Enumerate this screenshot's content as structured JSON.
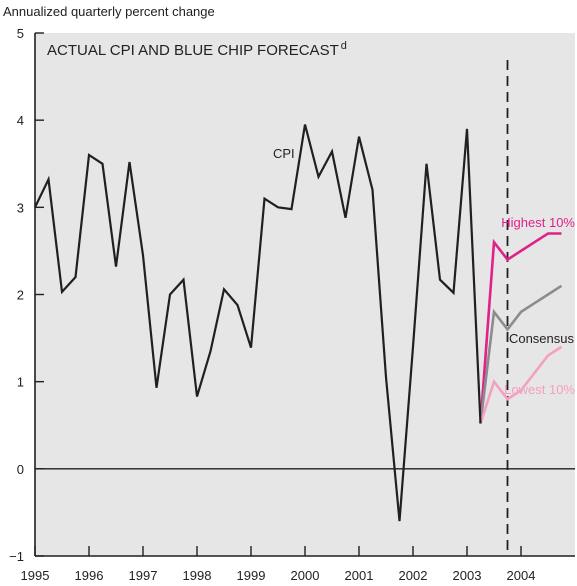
{
  "chart_data": {
    "type": "line",
    "title": "ACTUAL CPI AND BLUE CHIP FORECAST",
    "title_superscript": "d",
    "ylabel": "Annualized quarterly percent change",
    "xlabel": "",
    "ylim": [
      -1,
      5
    ],
    "y_ticks": [
      "5",
      "4",
      "3",
      "2",
      "1",
      "0",
      "−1"
    ],
    "x_ticks": [
      "1995",
      "1996",
      "1997",
      "1998",
      "1999",
      "2000",
      "2001",
      "2002",
      "2003",
      "2004"
    ],
    "grid": false,
    "forecast_start": 2003.75,
    "series": [
      {
        "name": "CPI",
        "color": "#231f20",
        "points": [
          [
            1995.0,
            3.0
          ],
          [
            1995.25,
            3.32
          ],
          [
            1995.5,
            2.03
          ],
          [
            1995.75,
            2.2
          ],
          [
            1996.0,
            3.6
          ],
          [
            1996.25,
            3.5
          ],
          [
            1996.5,
            2.32
          ],
          [
            1996.75,
            3.52
          ],
          [
            1997.0,
            2.45
          ],
          [
            1997.25,
            0.93
          ],
          [
            1997.5,
            2.0
          ],
          [
            1997.75,
            2.17
          ],
          [
            1998.0,
            0.83
          ],
          [
            1998.25,
            1.35
          ],
          [
            1998.5,
            2.06
          ],
          [
            1998.75,
            1.88
          ],
          [
            1999.0,
            1.39
          ],
          [
            1999.25,
            3.1
          ],
          [
            1999.5,
            3.0
          ],
          [
            1999.75,
            2.98
          ],
          [
            2000.0,
            3.95
          ],
          [
            2000.25,
            3.35
          ],
          [
            2000.5,
            3.64
          ],
          [
            2000.75,
            2.88
          ],
          [
            2001.0,
            3.81
          ],
          [
            2001.25,
            3.2
          ],
          [
            2001.5,
            1.05
          ],
          [
            2001.75,
            -0.6
          ],
          [
            2002.0,
            1.4
          ],
          [
            2002.25,
            3.5
          ],
          [
            2002.5,
            2.17
          ],
          [
            2002.75,
            2.02
          ],
          [
            2003.0,
            3.9
          ],
          [
            2003.25,
            0.52
          ]
        ]
      },
      {
        "name": "Highest 10%",
        "color": "#e0218a",
        "points": [
          [
            2003.25,
            0.52
          ],
          [
            2003.5,
            2.6
          ],
          [
            2003.75,
            2.4
          ],
          [
            2004.0,
            2.5
          ],
          [
            2004.25,
            2.6
          ],
          [
            2004.5,
            2.7
          ],
          [
            2004.75,
            2.7
          ]
        ]
      },
      {
        "name": "Consensus",
        "color": "#8c8c8c",
        "points": [
          [
            2003.25,
            0.52
          ],
          [
            2003.5,
            1.8
          ],
          [
            2003.75,
            1.6
          ],
          [
            2004.0,
            1.8
          ],
          [
            2004.25,
            1.9
          ],
          [
            2004.5,
            2.0
          ],
          [
            2004.75,
            2.1
          ]
        ]
      },
      {
        "name": "Lowest 10%",
        "color": "#f4a0c0",
        "points": [
          [
            2003.25,
            0.52
          ],
          [
            2003.5,
            1.0
          ],
          [
            2003.75,
            0.8
          ],
          [
            2004.0,
            0.9
          ],
          [
            2004.25,
            1.1
          ],
          [
            2004.5,
            1.3
          ],
          [
            2004.75,
            1.4
          ]
        ]
      }
    ]
  }
}
